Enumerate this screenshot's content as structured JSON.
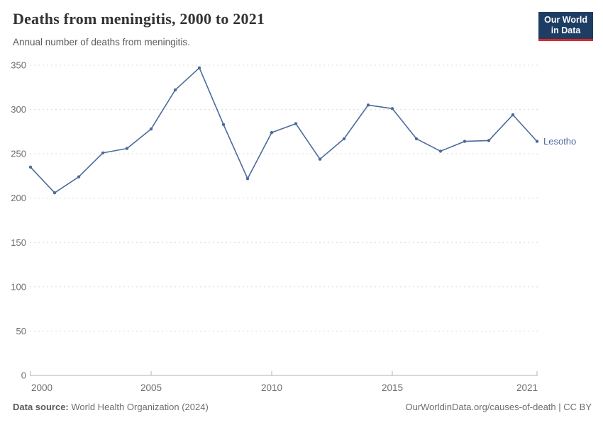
{
  "header": {
    "title": "Deaths from meningitis, 2000 to 2021",
    "subtitle": "Annual number of deaths from meningitis.",
    "logo_line1": "Our World",
    "logo_line2": "in Data"
  },
  "footer": {
    "source_label": "Data source:",
    "source_value": " World Health Organization (2024)",
    "link_text": "OurWorldinData.org/causes-of-death",
    "license_suffix": " | CC BY"
  },
  "chart_data": {
    "type": "line",
    "title": "Deaths from meningitis, 2000 to 2021",
    "series_label": "Lesotho",
    "x": [
      2000,
      2001,
      2002,
      2003,
      2004,
      2005,
      2006,
      2007,
      2008,
      2009,
      2010,
      2011,
      2012,
      2013,
      2014,
      2015,
      2016,
      2017,
      2018,
      2019,
      2020,
      2021
    ],
    "values": [
      235,
      206,
      224,
      251,
      256,
      278,
      322,
      347,
      283,
      222,
      274,
      284,
      244,
      267,
      305,
      301,
      267,
      253,
      264,
      265,
      294,
      264
    ],
    "xlabel": "",
    "ylabel": "",
    "ylim": [
      0,
      350
    ],
    "yticks": [
      0,
      50,
      100,
      150,
      200,
      250,
      300,
      350
    ],
    "xticks": [
      2000,
      2005,
      2010,
      2015,
      2021
    ],
    "grid": "horizontal-dashed",
    "legend_position": "end-of-line",
    "line_color": "#4c6a9c",
    "marker_color": "#4c6a9c",
    "entity_label_color": "#4c6a9c",
    "axis_text_color": "#6e6e6e",
    "gridline_color": "#dcdcdc",
    "axis_line_color": "#b3b3b3"
  }
}
